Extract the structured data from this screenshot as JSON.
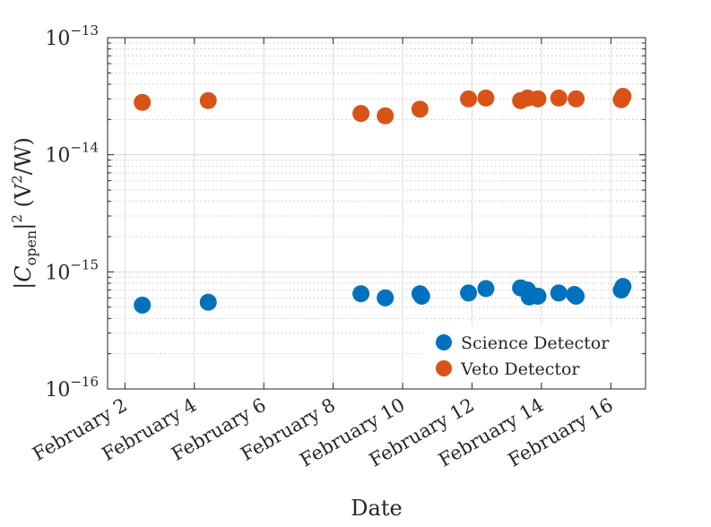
{
  "chart_data": {
    "type": "scatter",
    "xlabel": "Date",
    "ylabel_parts": {
      "abs_open": "|",
      "symbol": "C",
      "subscript": "open",
      "abs_close": "|",
      "power": "2",
      "units_open": " (V",
      "units_power": "2",
      "units_close": "/W)"
    },
    "yscale": "log",
    "ylim": [
      1e-16,
      1e-13
    ],
    "xlim": [
      1.5,
      17.0
    ],
    "y_ticks": [
      {
        "value": 1e-16,
        "base": "10",
        "exp": "−16"
      },
      {
        "value": 1e-15,
        "base": "10",
        "exp": "−15"
      },
      {
        "value": 1e-14,
        "base": "10",
        "exp": "−14"
      },
      {
        "value": 1e-13,
        "base": "10",
        "exp": "−13"
      }
    ],
    "x_ticks": [
      {
        "value": 2,
        "label": "February 2"
      },
      {
        "value": 4,
        "label": "February 4"
      },
      {
        "value": 6,
        "label": "February 6"
      },
      {
        "value": 8,
        "label": "February 8"
      },
      {
        "value": 10,
        "label": "February 10"
      },
      {
        "value": 12,
        "label": "February 12"
      },
      {
        "value": 14,
        "label": "February 14"
      },
      {
        "value": 16,
        "label": "February 16"
      }
    ],
    "grid": true,
    "legend_position": "bottom-right",
    "series": [
      {
        "name": "Science Detector",
        "color": "#0072BD",
        "points": [
          [
            2.5,
            5.2e-16
          ],
          [
            4.4,
            5.5e-16
          ],
          [
            8.8,
            6.5e-16
          ],
          [
            9.5,
            6e-16
          ],
          [
            10.5,
            6.5e-16
          ],
          [
            10.55,
            6.2e-16
          ],
          [
            11.9,
            6.6e-16
          ],
          [
            12.4,
            7.2e-16
          ],
          [
            13.4,
            7.3e-16
          ],
          [
            13.6,
            7e-16
          ],
          [
            13.65,
            6.1e-16
          ],
          [
            13.9,
            6.2e-16
          ],
          [
            14.5,
            6.6e-16
          ],
          [
            14.95,
            6.4e-16
          ],
          [
            15.0,
            6.2e-16
          ],
          [
            16.3,
            7e-16
          ],
          [
            16.35,
            7.5e-16
          ]
        ]
      },
      {
        "name": "Veto Detector",
        "color": "#D95319",
        "points": [
          [
            2.5,
            2.8e-14
          ],
          [
            4.4,
            2.9e-14
          ],
          [
            8.8,
            2.25e-14
          ],
          [
            9.5,
            2.15e-14
          ],
          [
            10.5,
            2.45e-14
          ],
          [
            11.9,
            3e-14
          ],
          [
            12.4,
            3.05e-14
          ],
          [
            13.4,
            2.9e-14
          ],
          [
            13.6,
            3.05e-14
          ],
          [
            13.9,
            3e-14
          ],
          [
            14.5,
            3.05e-14
          ],
          [
            15.0,
            3e-14
          ],
          [
            16.3,
            2.95e-14
          ],
          [
            16.35,
            3.15e-14
          ]
        ]
      }
    ]
  }
}
